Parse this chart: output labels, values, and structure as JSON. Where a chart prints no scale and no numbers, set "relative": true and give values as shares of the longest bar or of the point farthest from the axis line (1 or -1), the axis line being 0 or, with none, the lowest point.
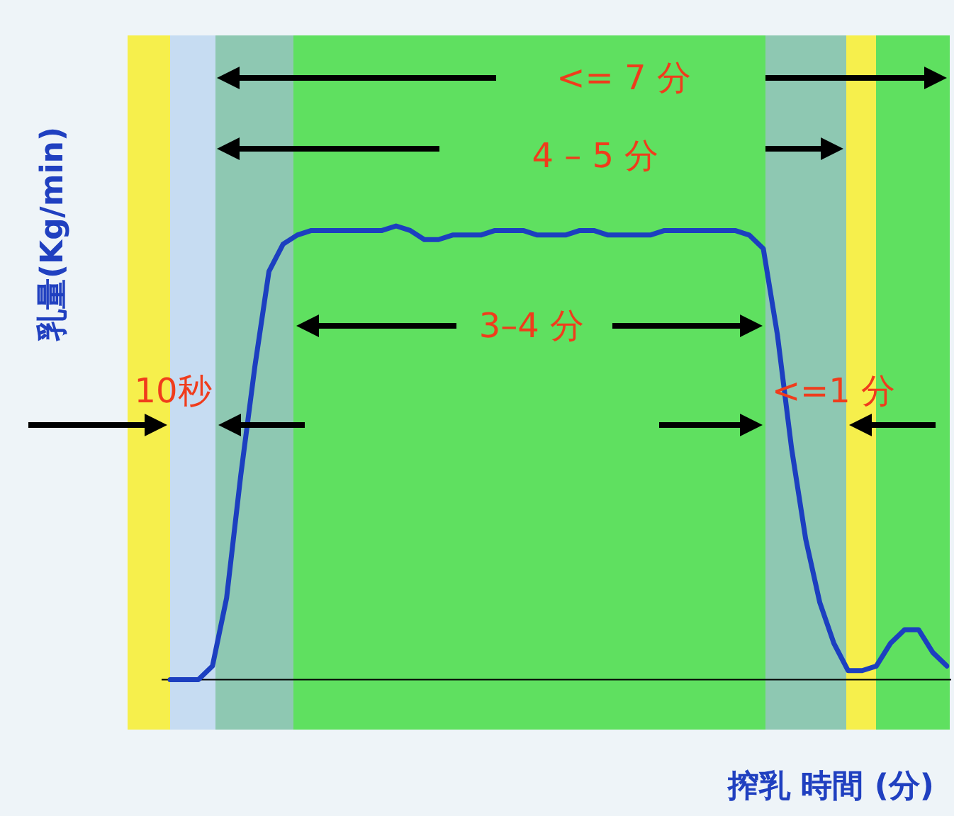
{
  "chart_data": {
    "type": "line",
    "relative": true,
    "xlabel": "搾乳 時間 (分)",
    "ylabel": "乳量(Kg/min)",
    "categories": [
      null,
      null,
      null,
      null,
      null,
      null,
      null,
      null,
      null,
      null,
      null,
      null,
      null,
      null,
      null,
      null,
      null,
      null,
      null,
      null,
      null,
      null,
      null,
      null,
      null,
      null,
      null,
      null,
      null,
      null,
      null,
      null,
      null,
      null,
      null,
      null,
      null,
      null,
      null,
      null,
      null,
      null,
      null,
      null,
      null,
      null,
      null,
      null,
      null,
      null,
      null,
      null,
      null,
      null,
      null,
      null
    ],
    "series": [
      {
        "color": "#1c3fc0",
        "values": [
          0,
          0,
          0,
          0.03,
          0.18,
          0.45,
          0.69,
          0.9,
          0.96,
          0.98,
          0.99,
          0.99,
          0.99,
          0.99,
          0.99,
          0.99,
          1,
          0.99,
          0.97,
          0.97,
          0.98,
          0.98,
          0.98,
          0.99,
          0.99,
          0.99,
          0.98,
          0.98,
          0.98,
          0.99,
          0.99,
          0.98,
          0.98,
          0.98,
          0.98,
          0.99,
          0.99,
          0.99,
          0.99,
          0.99,
          0.99,
          0.98,
          0.95,
          0.76,
          0.51,
          0.31,
          0.17,
          0.08,
          0.02,
          0.02,
          0.03,
          0.08,
          0.11,
          0.11,
          0.06,
          0.03
        ]
      }
    ],
    "annotations": [
      "<= 7 分",
      "4 – 5 分",
      "3–4 分",
      "10秒",
      "<=1 分"
    ],
    "legend": false,
    "marker": "none",
    "line_style": "solid"
  }
}
